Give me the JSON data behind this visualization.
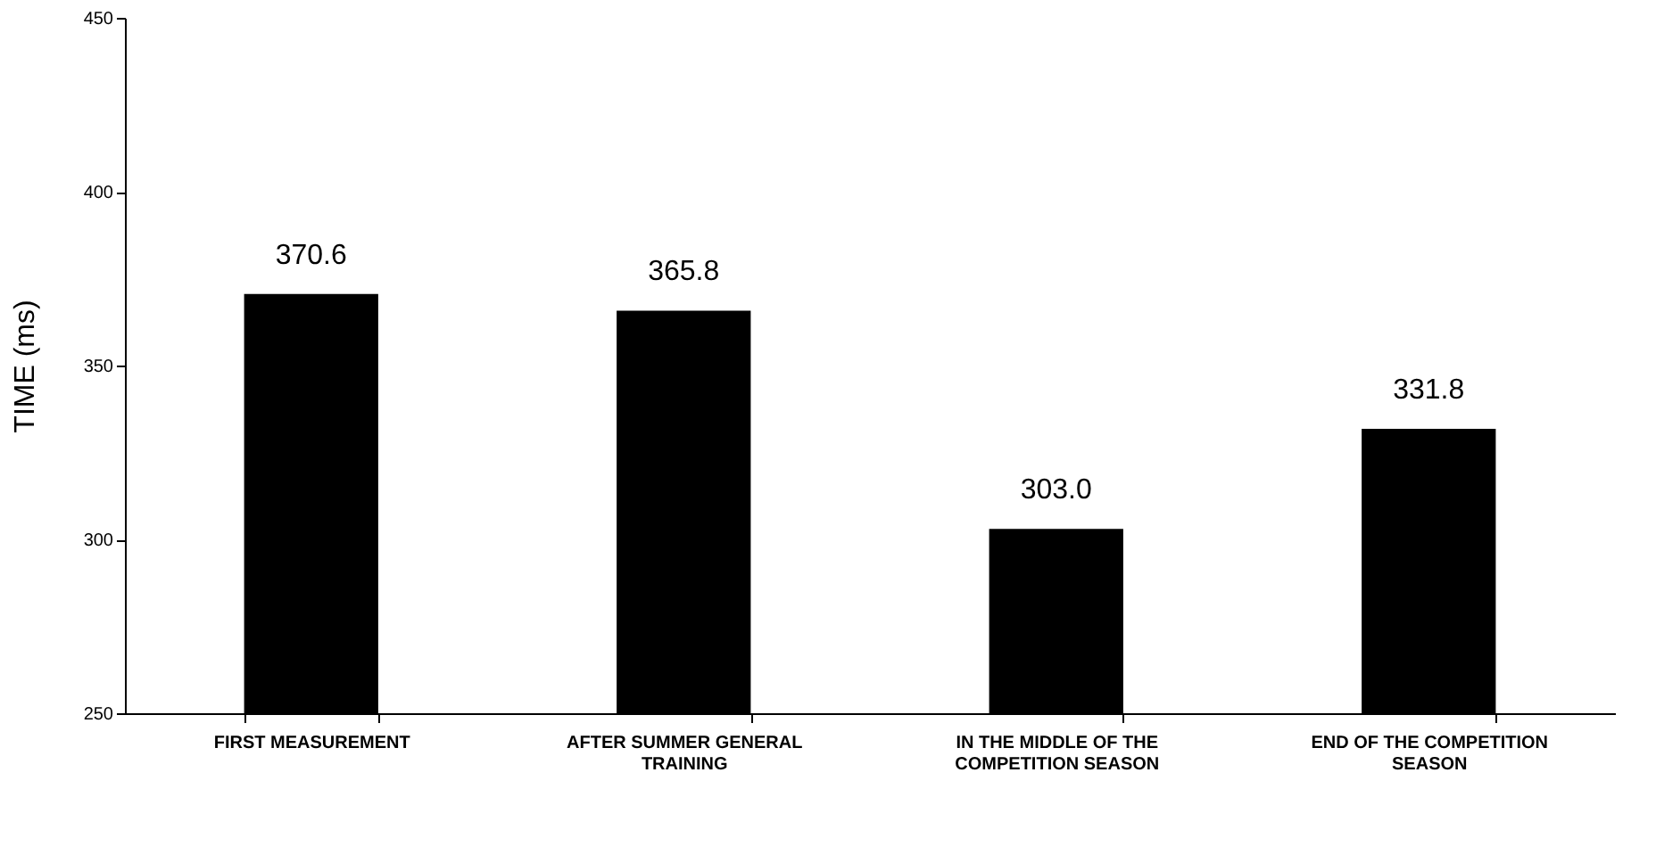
{
  "chart_data": {
    "type": "bar",
    "ylabel": "TIME (ms)",
    "categories": [
      "FIRST MEASUREMENT",
      "AFTER SUMMER GENERAL TRAINING",
      "IN THE MIDDLE OF THE COMPETITION SEASON",
      "END OF THE COMPETITION SEASON"
    ],
    "values": [
      370.6,
      365.8,
      303.0,
      331.8
    ],
    "value_labels": [
      "370.6",
      "365.8",
      "303.0",
      "331.8"
    ],
    "color": "#000000",
    "ylim": [
      250,
      450
    ],
    "yticks": [
      250,
      300,
      350,
      400,
      450
    ],
    "grid": false
  }
}
